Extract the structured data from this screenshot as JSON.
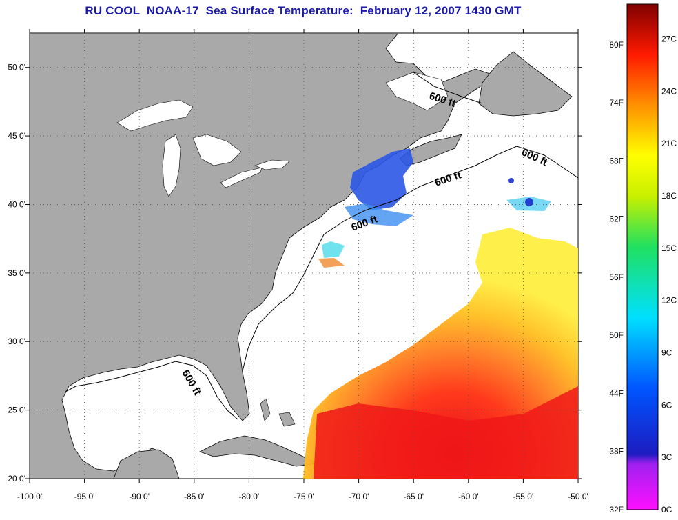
{
  "title": "RU COOL  NOAA-17  Sea Surface Temperature:  February 12, 2007 1430 GMT",
  "map": {
    "lon_range": [
      -100,
      -50
    ],
    "lat_range": [
      20,
      52.5
    ],
    "lon_ticks": [
      "-100 0'",
      "-95 0'",
      "-90 0'",
      "-85 0'",
      "-80 0'",
      "-75 0'",
      "-70 0'",
      "-65 0'",
      "-60 0'",
      "-55 0'",
      "-50 0'"
    ],
    "lat_ticks": [
      "50 0'",
      "45 0'",
      "40 0'",
      "35 0'",
      "30 0'",
      "25 0'",
      "20 0'"
    ],
    "land_color": "#a8a8a8",
    "ocean_color": "#ffffff",
    "grid": "dotted",
    "contour_labels": [
      "600 ft",
      "600 ft",
      "600 ft",
      "600 ft",
      "600 ft"
    ]
  },
  "colorbar": {
    "fahrenheit_labels": [
      "80F",
      "74F",
      "68F",
      "62F",
      "56F",
      "50F",
      "44F",
      "38F",
      "32F"
    ],
    "celsius_labels": [
      "27C",
      "24C",
      "21C",
      "18C",
      "15C",
      "12C",
      "9C",
      "6C",
      "3C",
      "0C"
    ],
    "colors": [
      "#ff00ff",
      "#7f00ff",
      "#0000ff",
      "#00ffff",
      "#00ff00",
      "#ffff00",
      "#ff8000",
      "#ff0000",
      "#800000"
    ]
  }
}
